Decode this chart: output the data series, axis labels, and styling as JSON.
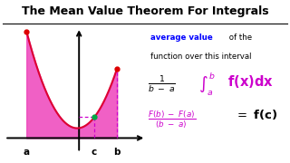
{
  "title": "The Mean Value Theorem For Integrals",
  "title_fontsize": 9.0,
  "title_fontweight": "bold",
  "title_color": "#000000",
  "bg_color": "#ffffff",
  "curve_color": "#dd0033",
  "fill_color": "#ee44bb",
  "fill_alpha": 0.85,
  "dashed_color": "#cc00cc",
  "axis_color": "#000000",
  "dot_red_color": "#dd0000",
  "dot_green_color": "#00aa44",
  "text_avg_fontsize": 6.2,
  "formula1_magenta": "#cc00cc",
  "formula2_color": "#cc00cc",
  "a_label": "a",
  "c_label": "c",
  "b_label": "b",
  "label_fontsize": 7.5
}
